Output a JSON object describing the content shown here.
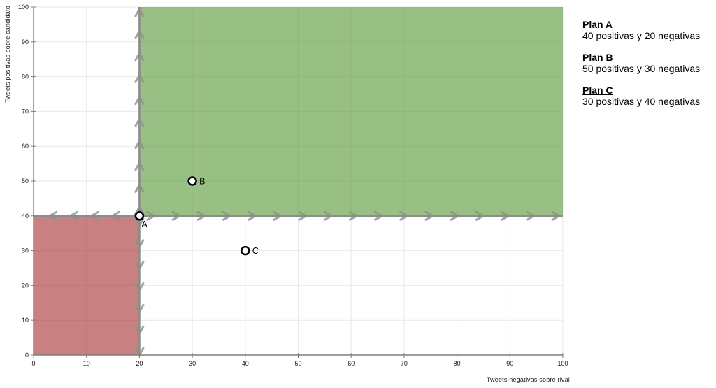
{
  "legend": {
    "items": [
      {
        "title": "Plan A",
        "description": "40 positivas y 20 negativas"
      },
      {
        "title": "Plan B",
        "description": "50 positivas y 30 negativas"
      },
      {
        "title": "Plan C",
        "description": "30 positivas y 40 negativas"
      }
    ]
  },
  "chart_data": {
    "type": "scatter",
    "title": "",
    "xlabel": "Tweets negativas sobre rival",
    "ylabel": "Tweets positivas sobre candidato",
    "xlim": [
      0,
      100
    ],
    "ylim": [
      0,
      100
    ],
    "xticks": [
      0,
      10,
      20,
      30,
      40,
      50,
      60,
      70,
      80,
      90,
      100
    ],
    "yticks": [
      0,
      10,
      20,
      30,
      40,
      50,
      60,
      70,
      80,
      90,
      100
    ],
    "grid": true,
    "legend_position": "right",
    "points": [
      {
        "label": "A",
        "x": 20,
        "y": 40,
        "label_position": "below-right"
      },
      {
        "label": "B",
        "x": 30,
        "y": 50,
        "label_position": "right"
      },
      {
        "label": "C",
        "x": 40,
        "y": 30,
        "label_position": "right"
      }
    ],
    "regions": [
      {
        "name": "region-upper-right-green",
        "x1": 20,
        "y1": 40,
        "x2": 100,
        "y2": 100,
        "fill": "#589838",
        "fill_opacity": 0.62
      },
      {
        "name": "region-lower-left-red",
        "x1": 0,
        "y1": 0,
        "x2": 20,
        "y2": 40,
        "fill": "#a83232",
        "fill_opacity": 0.62
      }
    ],
    "threshold_lines": {
      "vertical_x": 20,
      "horizontal_y": 40,
      "color": "#8c8c8c",
      "width": 2.6
    },
    "flow_arrows": {
      "color": "#8f8f8f",
      "segments": [
        {
          "dir": "left",
          "y": 40,
          "x_start": 3.5,
          "x_end": 19.3,
          "count": 5
        },
        {
          "dir": "right",
          "y": 40,
          "x_start": 22.3,
          "x_end": 98.8,
          "count": 17
        },
        {
          "dir": "up",
          "x": 20,
          "y_start": 41.8,
          "y_end": 98.6,
          "count": 10
        },
        {
          "dir": "down",
          "x": 20,
          "y_start": 38.0,
          "y_end": 0.8,
          "count": 7
        }
      ]
    },
    "colors": {
      "grid": "#e9e9e9",
      "axis": "#7f7f7f",
      "tick_label": "#1a1a1a",
      "point_fill": "#ffffff",
      "point_stroke": "#000000"
    }
  }
}
